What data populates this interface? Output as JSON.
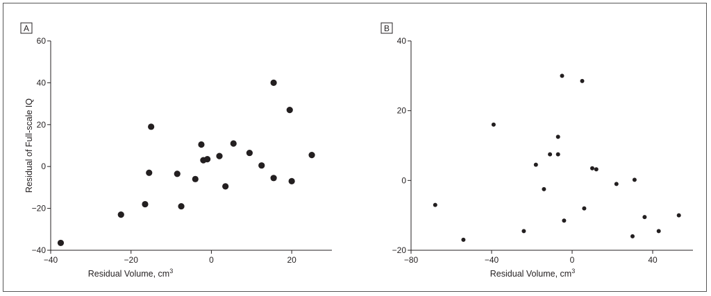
{
  "chart_data": [
    {
      "type": "scatter",
      "panel_label": "A",
      "xlabel": "Residual Volume, cm",
      "xlabel_sup": "3",
      "ylabel": "Residual of Full-scale IQ",
      "xlim": [
        -40,
        30
      ],
      "ylim": [
        -40,
        60
      ],
      "xticks": [
        -40,
        -20,
        0,
        20
      ],
      "yticks": [
        -40,
        -20,
        0,
        20,
        40,
        60
      ],
      "grid": false,
      "marker_color": "#231f20",
      "points": [
        {
          "x": -37.5,
          "y": -36.5
        },
        {
          "x": -22.5,
          "y": -23
        },
        {
          "x": -16.5,
          "y": -18
        },
        {
          "x": -15.5,
          "y": -3
        },
        {
          "x": -15,
          "y": 19
        },
        {
          "x": -8.5,
          "y": -3.5
        },
        {
          "x": -7.5,
          "y": -19
        },
        {
          "x": -4,
          "y": -6
        },
        {
          "x": -2.5,
          "y": 10.5
        },
        {
          "x": -2,
          "y": 3
        },
        {
          "x": -1,
          "y": 3.5
        },
        {
          "x": 2,
          "y": 5
        },
        {
          "x": 3.5,
          "y": -9.5
        },
        {
          "x": 5.5,
          "y": 11
        },
        {
          "x": 9.5,
          "y": 6.5
        },
        {
          "x": 12.5,
          "y": 0.5
        },
        {
          "x": 15.5,
          "y": -5.5
        },
        {
          "x": 15.5,
          "y": 40
        },
        {
          "x": 19.5,
          "y": 27
        },
        {
          "x": 20,
          "y": -7
        },
        {
          "x": 25,
          "y": 5.5
        }
      ]
    },
    {
      "type": "scatter",
      "panel_label": "B",
      "xlabel": "Residual Volume, cm",
      "xlabel_sup": "3",
      "ylabel": "",
      "xlim": [
        -80,
        60
      ],
      "ylim": [
        -20,
        40
      ],
      "xticks": [
        -80,
        -40,
        0,
        40
      ],
      "yticks": [
        -20,
        0,
        20,
        40
      ],
      "grid": false,
      "marker_color": "#231f20",
      "points": [
        {
          "x": -68,
          "y": -7
        },
        {
          "x": -54,
          "y": -17
        },
        {
          "x": -39,
          "y": 16
        },
        {
          "x": -24,
          "y": -14.5
        },
        {
          "x": -18,
          "y": 4.5
        },
        {
          "x": -14,
          "y": -2.5
        },
        {
          "x": -11,
          "y": 7.5
        },
        {
          "x": -7,
          "y": 12.5
        },
        {
          "x": -7,
          "y": 7.5
        },
        {
          "x": -5,
          "y": 30
        },
        {
          "x": -4,
          "y": -11.5
        },
        {
          "x": 5,
          "y": 28.5
        },
        {
          "x": 6,
          "y": -8
        },
        {
          "x": 10,
          "y": 3.5
        },
        {
          "x": 12,
          "y": 3.2
        },
        {
          "x": 22,
          "y": -1
        },
        {
          "x": 30,
          "y": -16
        },
        {
          "x": 31,
          "y": 0.2
        },
        {
          "x": 36,
          "y": -10.5
        },
        {
          "x": 43,
          "y": -14.5
        },
        {
          "x": 53,
          "y": -10
        }
      ]
    }
  ]
}
